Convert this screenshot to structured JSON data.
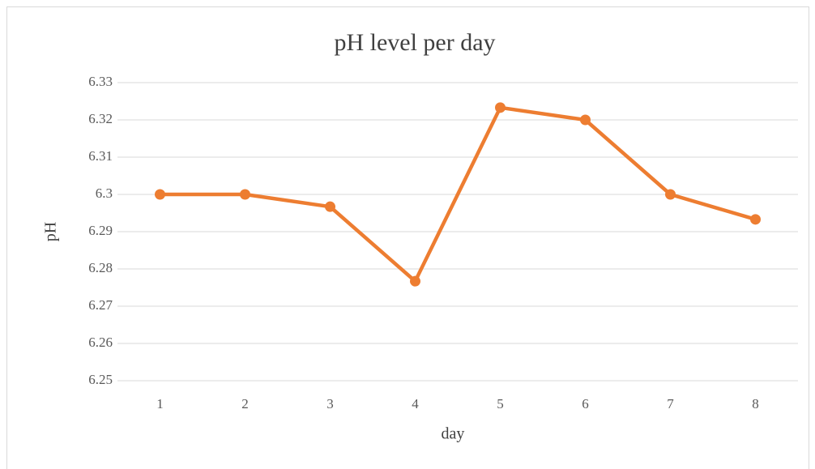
{
  "chart_data": {
    "type": "line",
    "title": "pH level per day",
    "x_label": "day",
    "y_label": "pH",
    "categories": [
      "1",
      "2",
      "3",
      "4",
      "5",
      "6",
      "7",
      "8"
    ],
    "series": [
      {
        "name": "pH",
        "color": "#ed7d31",
        "values": [
          6.3,
          6.3,
          6.2967,
          6.2767,
          6.3233,
          6.32,
          6.3,
          6.2933
        ]
      }
    ],
    "ylim": [
      6.25,
      6.33
    ],
    "yticks": [
      6.25,
      6.26,
      6.27,
      6.28,
      6.29,
      6.3,
      6.31,
      6.32,
      6.33
    ],
    "grid": true
  }
}
